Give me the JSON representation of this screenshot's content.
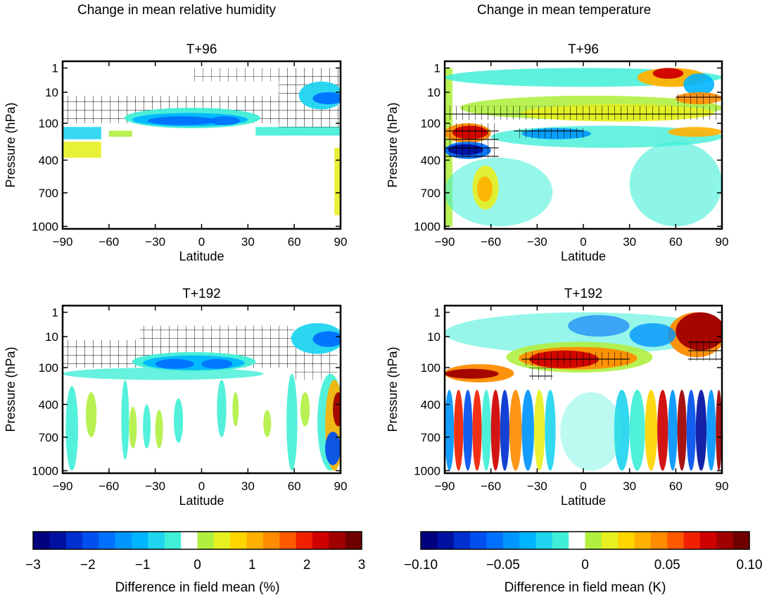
{
  "column_titles": [
    "Change in mean relative humidity",
    "Change in mean temperature"
  ],
  "colorscale": [
    "#00007f",
    "#00109f",
    "#0030cf",
    "#0050ef",
    "#0070ff",
    "#0095ff",
    "#00b5ff",
    "#20d5ef",
    "#40efd7",
    "#ffffff",
    "#b0ef40",
    "#e7f020",
    "#ffd500",
    "#ffb000",
    "#ff8c00",
    "#ff5a00",
    "#f02000",
    "#cf0000",
    "#a00000",
    "#700000"
  ],
  "chart_data": [
    {
      "type": "heatmap",
      "name": "rh-t96",
      "title": "T+96",
      "xlabel": "Latitude",
      "ylabel": "Pressure (hPa)",
      "xlim": [
        -90,
        90
      ],
      "xticks": [
        "−90",
        "−60",
        "−30",
        "0",
        "30",
        "60",
        "90"
      ],
      "yticks": [
        "1",
        "10",
        "100",
        "400",
        "700",
        "1000"
      ],
      "hatched_regions": [
        {
          "lat": [
            -90,
            90
          ],
          "p": [
            20,
            100
          ],
          "desc": "stratosphere hatching"
        }
      ],
      "features": [
        {
          "lat": [
            -50,
            35
          ],
          "p": [
            60,
            130
          ],
          "value": -1.6,
          "desc": "tropical tropopause dry band"
        },
        {
          "lat": [
            65,
            90
          ],
          "p": [
            8,
            50
          ],
          "value": -1.5,
          "desc": "northern high-latitude dry anomaly"
        },
        {
          "lat": [
            -90,
            -55
          ],
          "p": [
            130,
            260
          ],
          "value": -0.8
        },
        {
          "lat": [
            -90,
            -65
          ],
          "p": [
            260,
            380
          ],
          "value": 0.7
        },
        {
          "lat": [
            50,
            90
          ],
          "p": [
            120,
            200
          ],
          "value": -0.6
        }
      ]
    },
    {
      "type": "heatmap",
      "name": "temp-t96",
      "title": "T+96",
      "xlabel": "Latitude",
      "ylabel": "Pressure (hPa)",
      "xlim": [
        -90,
        90
      ],
      "xticks": [
        "−90",
        "−60",
        "−30",
        "0",
        "30",
        "60",
        "90"
      ],
      "yticks": [
        "1",
        "10",
        "100",
        "400",
        "700",
        "1000"
      ],
      "features": [
        {
          "lat": [
            -90,
            -60
          ],
          "p": [
            120,
            250
          ],
          "value": 0.08,
          "desc": "southern polar warm anomaly"
        },
        {
          "lat": [
            -90,
            -60
          ],
          "p": [
            250,
            380
          ],
          "value": -0.07,
          "desc": "southern polar cold anomaly"
        },
        {
          "lat": [
            -40,
            90
          ],
          "p": [
            50,
            90
          ],
          "value": 0.02
        },
        {
          "lat": [
            -40,
            30
          ],
          "p": [
            140,
            220
          ],
          "value": -0.05
        },
        {
          "lat": [
            40,
            75
          ],
          "p": [
            1,
            6
          ],
          "value": 0.08,
          "desc": "upper stratosphere warm"
        },
        {
          "lat": [
            60,
            90
          ],
          "p": [
            10,
            40
          ],
          "value": 0.07
        },
        {
          "lat": [
            -75,
            -55
          ],
          "p": [
            450,
            800
          ],
          "value": 0.03
        }
      ]
    },
    {
      "type": "heatmap",
      "name": "rh-t192",
      "title": "T+192",
      "xlabel": "Latitude",
      "ylabel": "Pressure (hPa)",
      "xlim": [
        -90,
        90
      ],
      "xticks": [
        "−90",
        "−60",
        "−30",
        "0",
        "30",
        "60",
        "90"
      ],
      "yticks": [
        "1",
        "10",
        "100",
        "400",
        "700",
        "1000"
      ],
      "features": [
        {
          "lat": [
            -45,
            35
          ],
          "p": [
            60,
            120
          ],
          "value": -1.8,
          "desc": "tropical tropopause dry band"
        },
        {
          "lat": [
            60,
            90
          ],
          "p": [
            5,
            40
          ],
          "value": -1.6
        },
        {
          "lat": [
            80,
            90
          ],
          "p": [
            150,
            1000
          ],
          "value": 1.5,
          "desc": "north pole moist column"
        },
        {
          "lat": [
            -90,
            60
          ],
          "p": [
            120,
            1000
          ],
          "value": -0.6,
          "desc": "scattered weak anomalies"
        }
      ]
    },
    {
      "type": "heatmap",
      "name": "temp-t192",
      "title": "T+192",
      "xlabel": "Latitude",
      "ylabel": "Pressure (hPa)",
      "xlim": [
        -90,
        90
      ],
      "xticks": [
        "−90",
        "−60",
        "−30",
        "0",
        "30",
        "60",
        "90"
      ],
      "yticks": [
        "1",
        "10",
        "100",
        "400",
        "700",
        "1000"
      ],
      "features": [
        {
          "lat": [
            -40,
            30
          ],
          "p": [
            40,
            110
          ],
          "value": 0.09,
          "desc": "tropical tropopause warming"
        },
        {
          "lat": [
            -90,
            -50
          ],
          "p": [
            110,
            200
          ],
          "value": 0.1
        },
        {
          "lat": [
            60,
            90
          ],
          "p": [
            1,
            60
          ],
          "value": 0.1,
          "desc": "northern stratosphere warming"
        },
        {
          "lat": [
            -90,
            90
          ],
          "p": [
            300,
            1000
          ],
          "value": 0.0,
          "desc": "alternating vertical bands ±0.10"
        }
      ]
    }
  ],
  "colorbars": [
    {
      "ticks": [
        "−3",
        "−2",
        "−1",
        "0",
        "1",
        "2",
        "3"
      ],
      "label": "Difference in field mean (%)"
    },
    {
      "ticks": [
        "−0.10",
        "−0.05",
        "0",
        "0.05",
        "0.10"
      ],
      "label": "Difference in field mean (K)"
    }
  ]
}
